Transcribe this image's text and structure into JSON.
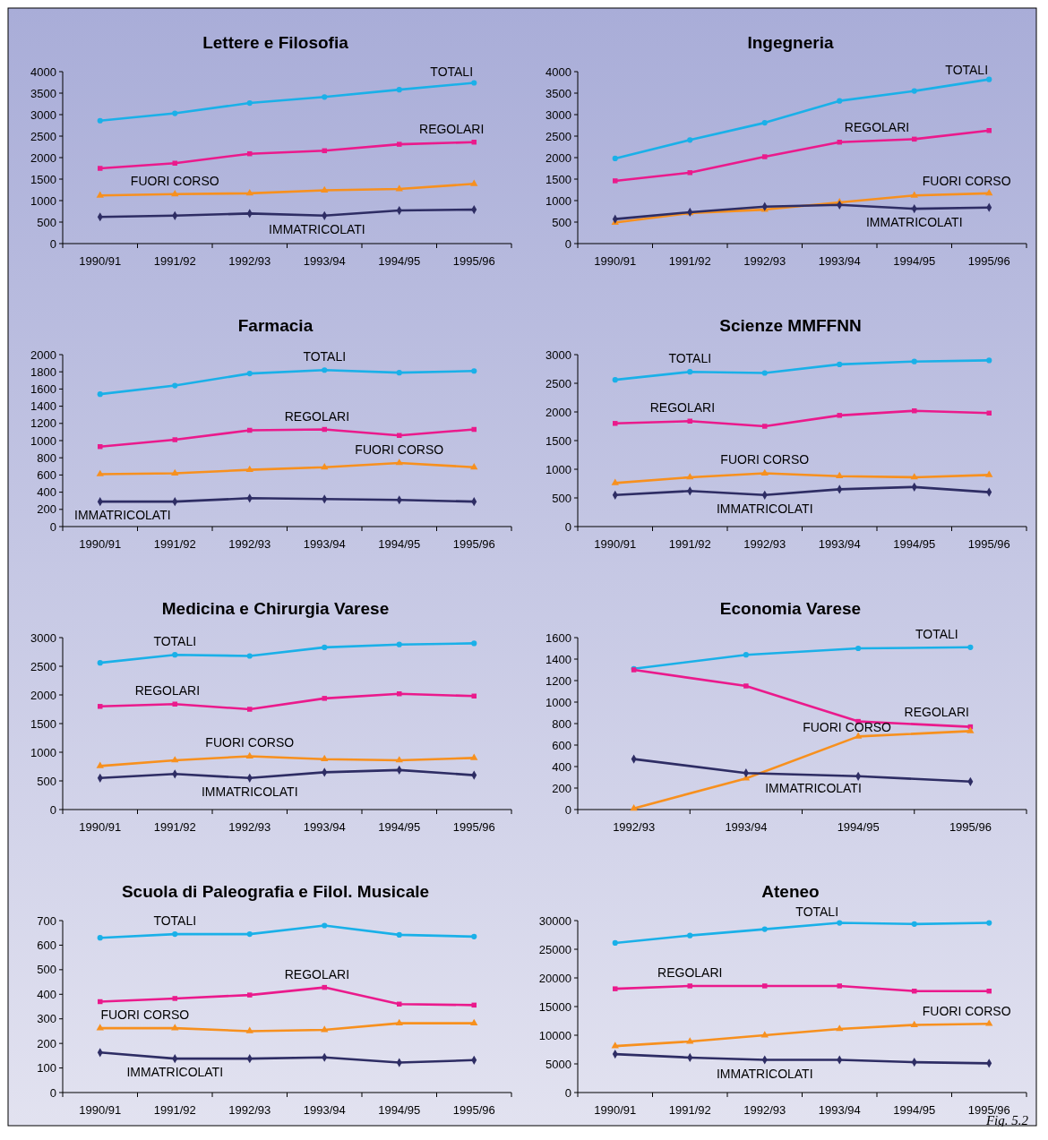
{
  "chart_data": [
    {
      "type": "line",
      "title": "Lettere e Filosofia",
      "categories": [
        "1990/91",
        "1991/92",
        "1992/93",
        "1993/94",
        "1994/95",
        "1995/96"
      ],
      "ylim": [
        0,
        4000
      ],
      "yticks": [
        0,
        500,
        1000,
        1500,
        2000,
        2500,
        3000,
        3500,
        4000
      ],
      "grid": false,
      "legend": false,
      "series": [
        {
          "name": "TOTALI",
          "color": "#1ab0e8",
          "marker": "circle",
          "values": [
            2860,
            3030,
            3270,
            3410,
            3580,
            3740
          ]
        },
        {
          "name": "REGOLARI",
          "color": "#ea1a8c",
          "marker": "square",
          "values": [
            1750,
            1870,
            2090,
            2160,
            2310,
            2360
          ]
        },
        {
          "name": "FUORI CORSO",
          "color": "#f7901e",
          "marker": "triangle",
          "values": [
            1120,
            1150,
            1170,
            1240,
            1270,
            1390
          ]
        },
        {
          "name": "IMMATRICOLATI",
          "color": "#2e2d64",
          "marker": "diamond",
          "values": [
            620,
            650,
            700,
            650,
            770,
            790
          ]
        }
      ]
    },
    {
      "type": "line",
      "title": "Ingegneria",
      "categories": [
        "1990/91",
        "1991/92",
        "1992/93",
        "1993/94",
        "1994/95",
        "1995/96"
      ],
      "ylim": [
        0,
        4000
      ],
      "yticks": [
        0,
        500,
        1000,
        1500,
        2000,
        2500,
        3000,
        3500,
        4000
      ],
      "grid": false,
      "legend": false,
      "series": [
        {
          "name": "TOTALI",
          "color": "#1ab0e8",
          "marker": "circle",
          "values": [
            1980,
            2410,
            2810,
            3320,
            3550,
            3820
          ]
        },
        {
          "name": "REGOLARI",
          "color": "#ea1a8c",
          "marker": "square",
          "values": [
            1460,
            1650,
            2020,
            2360,
            2430,
            2630
          ]
        },
        {
          "name": "FUORI CORSO",
          "color": "#f7901e",
          "marker": "triangle",
          "values": [
            490,
            710,
            790,
            960,
            1120,
            1170
          ]
        },
        {
          "name": "IMMATRICOLATI",
          "color": "#2e2d64",
          "marker": "diamond",
          "values": [
            570,
            730,
            860,
            900,
            810,
            840
          ]
        }
      ]
    },
    {
      "type": "line",
      "title": "Farmacia",
      "categories": [
        "1990/91",
        "1991/92",
        "1992/93",
        "1993/94",
        "1994/95",
        "1995/96"
      ],
      "ylim": [
        0,
        2000
      ],
      "yticks": [
        0,
        200,
        400,
        600,
        800,
        1000,
        1200,
        1400,
        1600,
        1800,
        2000
      ],
      "grid": false,
      "legend": false,
      "series": [
        {
          "name": "TOTALI",
          "color": "#1ab0e8",
          "marker": "circle",
          "values": [
            1540,
            1640,
            1780,
            1820,
            1790,
            1810
          ]
        },
        {
          "name": "REGOLARI",
          "color": "#ea1a8c",
          "marker": "square",
          "values": [
            930,
            1010,
            1120,
            1130,
            1060,
            1130
          ]
        },
        {
          "name": "FUORI CORSO",
          "color": "#f7901e",
          "marker": "triangle",
          "values": [
            610,
            620,
            660,
            690,
            740,
            690
          ]
        },
        {
          "name": "IMMATRICOLATI",
          "color": "#2e2d64",
          "marker": "diamond",
          "values": [
            290,
            290,
            330,
            320,
            310,
            290
          ]
        }
      ]
    },
    {
      "type": "line",
      "title": "Scienze MMFFNN",
      "categories": [
        "1990/91",
        "1991/92",
        "1992/93",
        "1993/94",
        "1994/95",
        "1995/96"
      ],
      "ylim": [
        0,
        3000
      ],
      "yticks": [
        0,
        500,
        1000,
        1500,
        2000,
        2500,
        3000
      ],
      "grid": false,
      "legend": false,
      "series": [
        {
          "name": "TOTALI",
          "color": "#1ab0e8",
          "marker": "circle",
          "values": [
            2560,
            2700,
            2680,
            2830,
            2880,
            2900
          ]
        },
        {
          "name": "REGOLARI",
          "color": "#ea1a8c",
          "marker": "square",
          "values": [
            1800,
            1840,
            1750,
            1940,
            2020,
            1980
          ]
        },
        {
          "name": "FUORI CORSO",
          "color": "#f7901e",
          "marker": "triangle",
          "values": [
            760,
            860,
            930,
            880,
            860,
            900
          ]
        },
        {
          "name": "IMMATRICOLATI",
          "color": "#2e2d64",
          "marker": "diamond",
          "values": [
            550,
            620,
            550,
            650,
            690,
            600
          ]
        }
      ]
    },
    {
      "type": "line",
      "title": "Medicina e Chirurgia Varese",
      "categories": [
        "1990/91",
        "1991/92",
        "1992/93",
        "1993/94",
        "1994/95",
        "1995/96"
      ],
      "ylim": [
        0,
        3000
      ],
      "yticks": [
        0,
        500,
        1000,
        1500,
        2000,
        2500,
        3000
      ],
      "grid": false,
      "legend": false,
      "series": [
        {
          "name": "TOTALI",
          "color": "#1ab0e8",
          "marker": "circle",
          "values": [
            2560,
            2700,
            2680,
            2830,
            2880,
            2900
          ]
        },
        {
          "name": "REGOLARI",
          "color": "#ea1a8c",
          "marker": "square",
          "values": [
            1800,
            1840,
            1750,
            1940,
            2020,
            1980
          ]
        },
        {
          "name": "FUORI CORSO",
          "color": "#f7901e",
          "marker": "triangle",
          "values": [
            760,
            860,
            930,
            880,
            860,
            900
          ]
        },
        {
          "name": "IMMATRICOLATI",
          "color": "#2e2d64",
          "marker": "diamond",
          "values": [
            550,
            620,
            550,
            650,
            690,
            600
          ]
        }
      ]
    },
    {
      "type": "line",
      "title": "Economia Varese",
      "categories": [
        "1992/93",
        "1993/94",
        "1994/95",
        "1995/96"
      ],
      "ylim": [
        0,
        1600
      ],
      "yticks": [
        0,
        200,
        400,
        600,
        800,
        1000,
        1200,
        1400,
        1600
      ],
      "grid": false,
      "legend": false,
      "series": [
        {
          "name": "TOTALI",
          "color": "#1ab0e8",
          "marker": "circle",
          "values": [
            1310,
            1440,
            1500,
            1510
          ]
        },
        {
          "name": "REGOLARI",
          "color": "#ea1a8c",
          "marker": "square",
          "values": [
            1300,
            1150,
            820,
            770
          ]
        },
        {
          "name": "FUORI CORSO",
          "color": "#f7901e",
          "marker": "triangle",
          "values": [
            10,
            290,
            680,
            730
          ]
        },
        {
          "name": "IMMATRICOLATI",
          "color": "#2e2d64",
          "marker": "diamond",
          "values": [
            470,
            340,
            310,
            260
          ]
        }
      ]
    },
    {
      "type": "line",
      "title": "Scuola di Paleografia e Filol. Musicale",
      "categories": [
        "1990/91",
        "1991/92",
        "1992/93",
        "1993/94",
        "1994/95",
        "1995/96"
      ],
      "ylim": [
        0,
        700
      ],
      "yticks": [
        0,
        100,
        200,
        300,
        400,
        500,
        600,
        700
      ],
      "grid": false,
      "legend": false,
      "series": [
        {
          "name": "TOTALI",
          "color": "#1ab0e8",
          "marker": "circle",
          "values": [
            630,
            645,
            645,
            680,
            642,
            635
          ]
        },
        {
          "name": "REGOLARI",
          "color": "#ea1a8c",
          "marker": "square",
          "values": [
            370,
            383,
            397,
            428,
            360,
            356
          ]
        },
        {
          "name": "FUORI CORSO",
          "color": "#f7901e",
          "marker": "triangle",
          "values": [
            262,
            262,
            250,
            255,
            282,
            282
          ]
        },
        {
          "name": "IMMATRICOLATI",
          "color": "#2e2d64",
          "marker": "diamond",
          "values": [
            163,
            138,
            138,
            143,
            122,
            132
          ]
        }
      ]
    },
    {
      "type": "line",
      "title": "Ateneo",
      "categories": [
        "1990/91",
        "1991/92",
        "1992/93",
        "1993/94",
        "1994/95",
        "1995/96"
      ],
      "ylim": [
        0,
        30000
      ],
      "yticks": [
        0,
        5000,
        10000,
        15000,
        20000,
        25000,
        30000
      ],
      "grid": false,
      "legend": false,
      "annotations": [
        "Fig. 5.2"
      ],
      "series": [
        {
          "name": "TOTALI",
          "color": "#1ab0e8",
          "marker": "circle",
          "values": [
            26100,
            27400,
            28500,
            29600,
            29400,
            29600
          ]
        },
        {
          "name": "REGOLARI",
          "color": "#ea1a8c",
          "marker": "square",
          "values": [
            18100,
            18600,
            18600,
            18600,
            17700,
            17700
          ]
        },
        {
          "name": "FUORI CORSO",
          "color": "#f7901e",
          "marker": "triangle",
          "values": [
            8100,
            8900,
            10000,
            11100,
            11800,
            12000
          ]
        },
        {
          "name": "IMMATRICOLATI",
          "color": "#2e2d64",
          "marker": "diamond",
          "values": [
            6700,
            6100,
            5700,
            5700,
            5300,
            5100
          ]
        }
      ]
    }
  ]
}
